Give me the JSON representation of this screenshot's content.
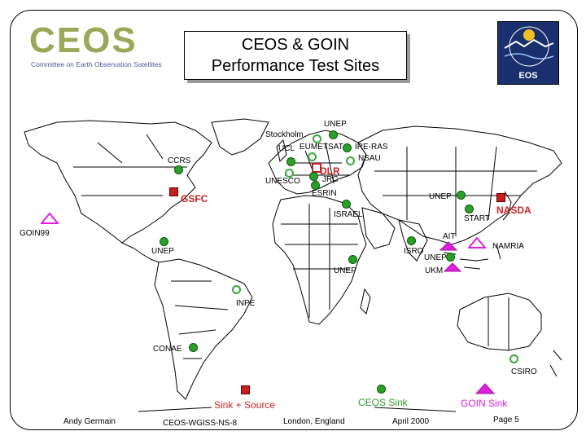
{
  "logo": {
    "word": "CEOS",
    "subtitle": "Committee on Earth Observation Satellites"
  },
  "title": {
    "line1": "CEOS & GOIN",
    "line2": "Performance Test Sites"
  },
  "eos_logo": {
    "text": "EOS"
  },
  "sites": {
    "unep_north": "UNEP",
    "stockholm": "Stockholm",
    "ucl": "UCL",
    "eumetsat": "EUMETSAT",
    "ire_ras": "IRE-RAS",
    "nsau": "NSAU",
    "ccrs": "CCRS",
    "dlr": "DLR",
    "unesco": "UNESCO",
    "jrc": "JRC",
    "esrin": "ESRIN",
    "gsfc": "GSFC",
    "unep_east": "UNEP",
    "nasda": "NASDA",
    "israel": "ISRAEL",
    "start": "START",
    "goin99": "GOIN99",
    "ait": "AIT",
    "namria": "NAMRIA",
    "unep_west": "UNEP",
    "isro": "ISRO",
    "unep_asia": "UNEP",
    "unep_africa": "UNEP",
    "ukm": "UKM",
    "inpe": "INPE",
    "conae": "CONAE",
    "csiro": "CSIRO"
  },
  "legend": {
    "sink_source": "Sink + Source",
    "ceos_sink": "CEOS Sink",
    "goin_sink": "GOIN Sink"
  },
  "footer": {
    "author": "Andy Germain",
    "doc_id": "CEOS-WGISS-NS-8",
    "location": "London, England",
    "date": "April 2000",
    "page": "Page 5"
  },
  "colors": {
    "ceos_sink": "#2aa02a",
    "sink_source": "#c81e1e",
    "goin_sink": "#e020e0",
    "title_shadow": "#9a9a9a"
  }
}
